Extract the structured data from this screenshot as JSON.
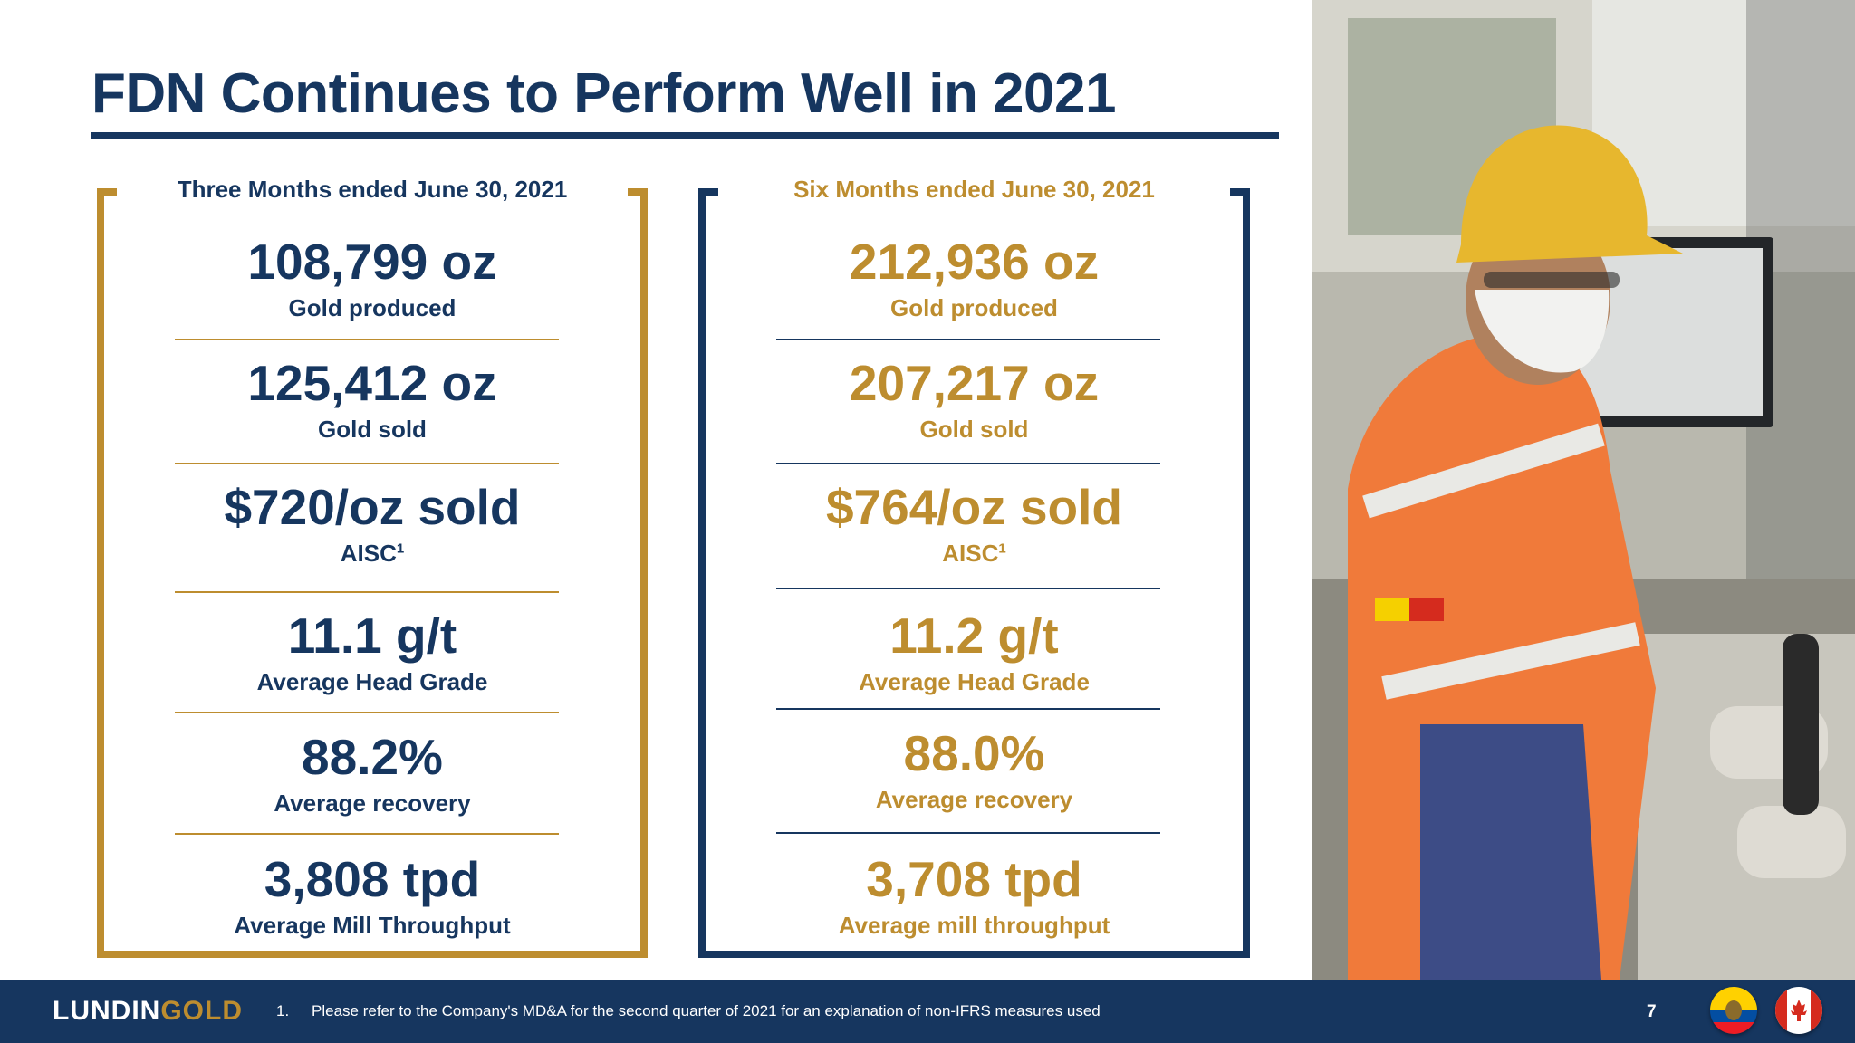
{
  "title": "FDN Continues to Perform Well in 2021",
  "left_panel": {
    "period": "Three Months ended June 30, 2021",
    "metrics": [
      {
        "value": "108,799 oz",
        "label": "Gold produced"
      },
      {
        "value": "125,412 oz",
        "label": "Gold sold"
      },
      {
        "value": "$720/oz sold",
        "label": "AISC",
        "sup": "1"
      },
      {
        "value": "11.1 g/t",
        "label": "Average Head Grade"
      },
      {
        "value": "88.2%",
        "label": "Average recovery"
      },
      {
        "value": "3,808 tpd",
        "label": "Average Mill Throughput"
      }
    ]
  },
  "right_panel": {
    "period": "Six Months ended June 30, 2021",
    "metrics": [
      {
        "value": "212,936 oz",
        "label": "Gold produced"
      },
      {
        "value": "207,217 oz",
        "label": "Gold sold"
      },
      {
        "value": "$764/oz sold",
        "label": "AISC",
        "sup": "1"
      },
      {
        "value": "11.2 g/t",
        "label": "Average Head Grade"
      },
      {
        "value": "88.0%",
        "label": "Average recovery"
      },
      {
        "value": "3,708 tpd",
        "label": "Average mill throughput"
      }
    ]
  },
  "footer": {
    "logo_part1": "LUNDIN",
    "logo_part2": "GOLD",
    "footnote_number": "1.",
    "footnote_text": "Please refer to the Company's MD&A for the second quarter of 2021 for an explanation of non-IFRS measures used",
    "page_number": "7"
  },
  "colors": {
    "navy": "#16365f",
    "gold": "#bd8d2f"
  },
  "icons": [
    "ecuador-flag-icon",
    "canada-flag-icon"
  ]
}
